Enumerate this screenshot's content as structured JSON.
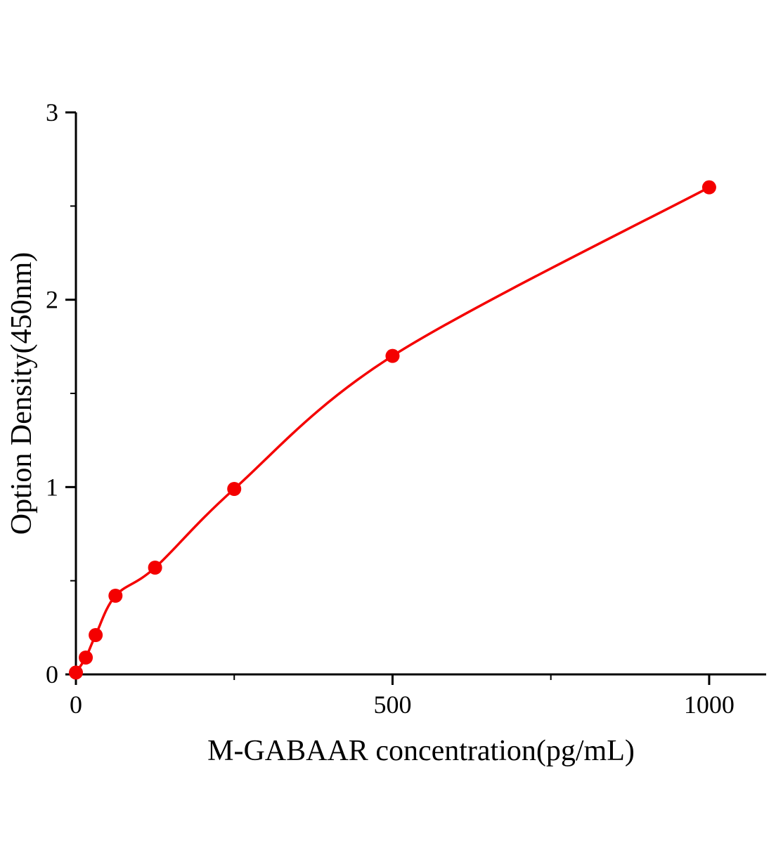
{
  "chart_data": {
    "type": "scatter",
    "title": "",
    "xlabel": "M-GABAAR concentration(pg/mL)",
    "ylabel": "Option Density(450nm)",
    "x": [
      0,
      15.6,
      31.2,
      62.5,
      125,
      250,
      500,
      1000
    ],
    "y": [
      0.01,
      0.09,
      0.21,
      0.42,
      0.57,
      0.99,
      1.7,
      2.6
    ],
    "xlim": [
      0,
      1090
    ],
    "ylim": [
      0,
      3
    ],
    "xticks": [
      0,
      500,
      1000
    ],
    "yticks": [
      0,
      1,
      2,
      3
    ],
    "x_minor_ticks": [
      250,
      750
    ],
    "y_minor_ticks": [
      0.5,
      1.5,
      2.5
    ],
    "grid": false,
    "legend_position": "none",
    "line_color": "#f40000",
    "marker_color": "#f40000",
    "axis_color": "#000000",
    "marker_radius": 10,
    "curve_through_points": true
  }
}
